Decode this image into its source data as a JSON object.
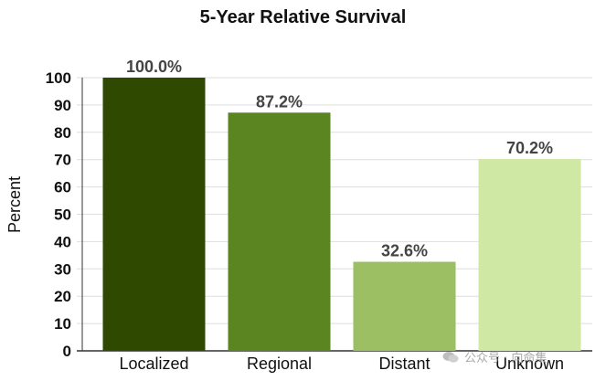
{
  "chart_data": {
    "type": "bar",
    "title": "5-Year Relative Survival",
    "ylabel": "Percent",
    "xlabel": "",
    "categories": [
      "Localized",
      "Regional",
      "Distant",
      "Unknown"
    ],
    "values": [
      100.0,
      87.2,
      32.6,
      70.2
    ],
    "value_labels": [
      "100.0%",
      "87.2%",
      "32.6%",
      "70.2%"
    ],
    "colors": [
      "#2f4a00",
      "#5b8520",
      "#9bbf62",
      "#cfe8a3"
    ],
    "ylim": [
      0,
      100
    ],
    "yticks": [
      0,
      10,
      20,
      30,
      40,
      50,
      60,
      70,
      80,
      90,
      100
    ],
    "grid": true,
    "legend": false
  },
  "watermark": "公众号 · 向命集"
}
